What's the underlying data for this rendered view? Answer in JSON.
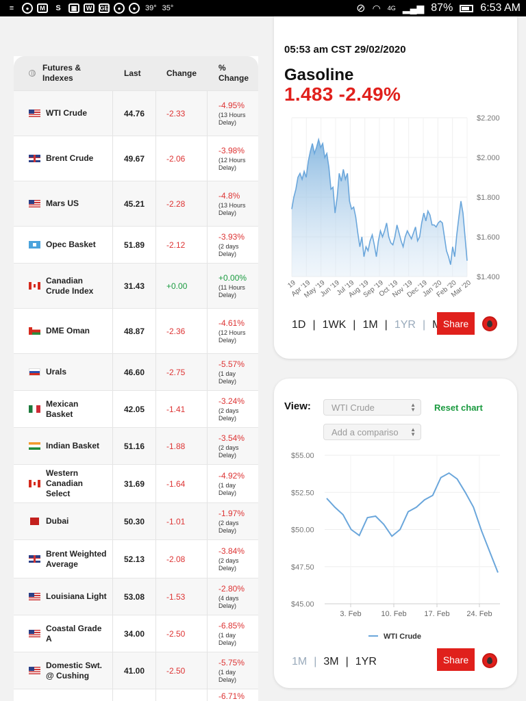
{
  "status_bar": {
    "temp1": "39°",
    "temp2": "35°",
    "network": "4G",
    "battery": "87%",
    "time": "6:53 AM"
  },
  "table": {
    "headers": {
      "name": "Futures & Indexes",
      "last": "Last",
      "change": "Change",
      "pct_change": "% Change"
    },
    "rows": [
      {
        "flag": "us",
        "name": "WTI Crude",
        "last": "44.76",
        "change": "-2.33",
        "pct": "-4.95%",
        "delay": "(13 Hours Delay)",
        "h": 66
      },
      {
        "flag": "uk",
        "name": "Brent Crude",
        "last": "49.67",
        "change": "-2.06",
        "pct": "-3.98%",
        "delay": "(12 Hours Delay)",
        "h": 66
      },
      {
        "flag": "us",
        "name": "Mars US",
        "last": "45.21",
        "change": "-2.28",
        "pct": "-4.8%",
        "delay": "(13 Hours Delay)",
        "h": 66
      },
      {
        "flag": "opec",
        "name": "Opec Basket",
        "last": "51.89",
        "change": "-2.12",
        "pct": "-3.93%",
        "delay": "(2 days Delay)",
        "h": 54
      },
      {
        "flag": "ca",
        "name": "Canadian Crude Index",
        "last": "31.43",
        "change": "+0.00",
        "pct": "+0.00%",
        "delay": "(11 Hours Delay)",
        "h": 66
      },
      {
        "flag": "om",
        "name": "DME Oman",
        "last": "48.87",
        "change": "-2.36",
        "pct": "-4.61%",
        "delay": "(12 Hours Delay)",
        "h": 66
      },
      {
        "flag": "ru",
        "name": "Urals",
        "last": "46.60",
        "change": "-2.75",
        "pct": "-5.57%",
        "delay": "(1 day Delay)",
        "h": 54
      },
      {
        "flag": "mx",
        "name": "Mexican Basket",
        "last": "42.05",
        "change": "-1.41",
        "pct": "-3.24%",
        "delay": "(2 days Delay)",
        "h": 54
      },
      {
        "flag": "in",
        "name": "Indian Basket",
        "last": "51.16",
        "change": "-1.88",
        "pct": "-3.54%",
        "delay": "(2 days Delay)",
        "h": 54
      },
      {
        "flag": "ca",
        "name": "Western Canadian Select",
        "last": "31.69",
        "change": "-1.64",
        "pct": "-4.92%",
        "delay": "(1 day Delay)",
        "h": 56
      },
      {
        "flag": "ae",
        "name": "Dubai",
        "last": "50.30",
        "change": "-1.01",
        "pct": "-1.97%",
        "delay": "(2 days Delay)",
        "h": 54
      },
      {
        "flag": "uk",
        "name": "Brent Weighted Average",
        "last": "52.13",
        "change": "-2.08",
        "pct": "-3.84%",
        "delay": "(2 days Delay)",
        "h": 56
      },
      {
        "flag": "us",
        "name": "Louisiana Light",
        "last": "53.08",
        "change": "-1.53",
        "pct": "-2.80%",
        "delay": "(4 days Delay)",
        "h": 54
      },
      {
        "flag": "us",
        "name": "Coastal Grade A",
        "last": "34.00",
        "change": "-2.50",
        "pct": "-6.85%",
        "delay": "(1 day Delay)",
        "h": 54
      },
      {
        "flag": "us",
        "name": "Domestic Swt. @ Cushing",
        "last": "41.00",
        "change": "-2.50",
        "pct": "-5.75%",
        "delay": "(1 day Delay)",
        "h": 54
      },
      {
        "flag": "",
        "name": "",
        "last": "",
        "change": "",
        "pct": "-6.71%",
        "delay": "",
        "h": 22
      }
    ]
  },
  "top_card": {
    "timestamp": "05:53 am CST 29/02/2020",
    "commodity": "Gasoline",
    "quote": "1.483 -2.49%",
    "ranges": [
      {
        "label": "1D",
        "active": false
      },
      {
        "label": "1WK",
        "active": false
      },
      {
        "label": "1M",
        "active": false
      },
      {
        "label": "1YR",
        "active": true
      },
      {
        "label": "Max",
        "active": false
      }
    ],
    "share_label": "Share"
  },
  "bottom_card": {
    "view_label": "View:",
    "view_select": "WTI Crude",
    "compare_select": "Add a compariso",
    "reset_label": "Reset chart",
    "ranges": [
      {
        "label": "1M",
        "active": true
      },
      {
        "label": "3M",
        "active": false
      },
      {
        "label": "1YR",
        "active": false
      }
    ],
    "share_label": "Share"
  },
  "chart_data": [
    {
      "type": "area",
      "title": "",
      "x_ticks": [
        "19",
        "Apr '19",
        "May '19",
        "Jun '19",
        "Jul '19",
        "Aug '19",
        "Sep '19",
        "Oct '19",
        "Nov '19",
        "Dec '19",
        "Jan '20",
        "Feb '20",
        "Mar '20"
      ],
      "y_ticks": [
        "$2.200",
        "$2.000",
        "$1.800",
        "$1.600",
        "$1.400"
      ],
      "ylim": [
        1.4,
        2.2
      ],
      "grid": true,
      "series": [
        {
          "values": [
            1.74,
            1.8,
            1.84,
            1.9,
            1.92,
            1.89,
            1.93,
            1.9,
            1.98,
            2.03,
            2.07,
            2.02,
            2.05,
            2.09,
            2.05,
            2.07,
            2.0,
            2.02,
            1.95,
            1.84,
            1.85,
            1.72,
            1.8,
            1.92,
            1.88,
            1.94,
            1.89,
            1.92,
            1.78,
            1.74,
            1.75,
            1.7,
            1.62,
            1.55,
            1.6,
            1.5,
            1.55,
            1.53,
            1.58,
            1.61,
            1.56,
            1.5,
            1.58,
            1.63,
            1.6,
            1.63,
            1.67,
            1.6,
            1.57,
            1.56,
            1.6,
            1.66,
            1.62,
            1.58,
            1.55,
            1.6,
            1.63,
            1.61,
            1.59,
            1.62,
            1.65,
            1.58,
            1.6,
            1.67,
            1.72,
            1.68,
            1.73,
            1.71,
            1.66,
            1.66,
            1.65,
            1.67,
            1.68,
            1.67,
            1.6,
            1.53,
            1.5,
            1.46,
            1.55,
            1.5,
            1.61,
            1.7,
            1.78,
            1.72,
            1.6,
            1.48
          ]
        }
      ]
    },
    {
      "type": "line",
      "title": "",
      "x_ticks": [
        "3. Feb",
        "10. Feb",
        "17. Feb",
        "24. Feb"
      ],
      "y_ticks": [
        "$55.00",
        "$52.50",
        "$50.00",
        "$47.50",
        "$45.00"
      ],
      "ylim": [
        45,
        55
      ],
      "legend_position": "bottom",
      "grid": true,
      "series": [
        {
          "name": "WTI Crude",
          "values": [
            52.1,
            51.5,
            51.0,
            50.0,
            49.6,
            50.8,
            50.9,
            50.35,
            49.55,
            50.0,
            51.2,
            51.5,
            52.0,
            52.3,
            53.5,
            53.8,
            53.4,
            52.5,
            51.5,
            49.9,
            48.5,
            47.1
          ]
        }
      ]
    }
  ]
}
